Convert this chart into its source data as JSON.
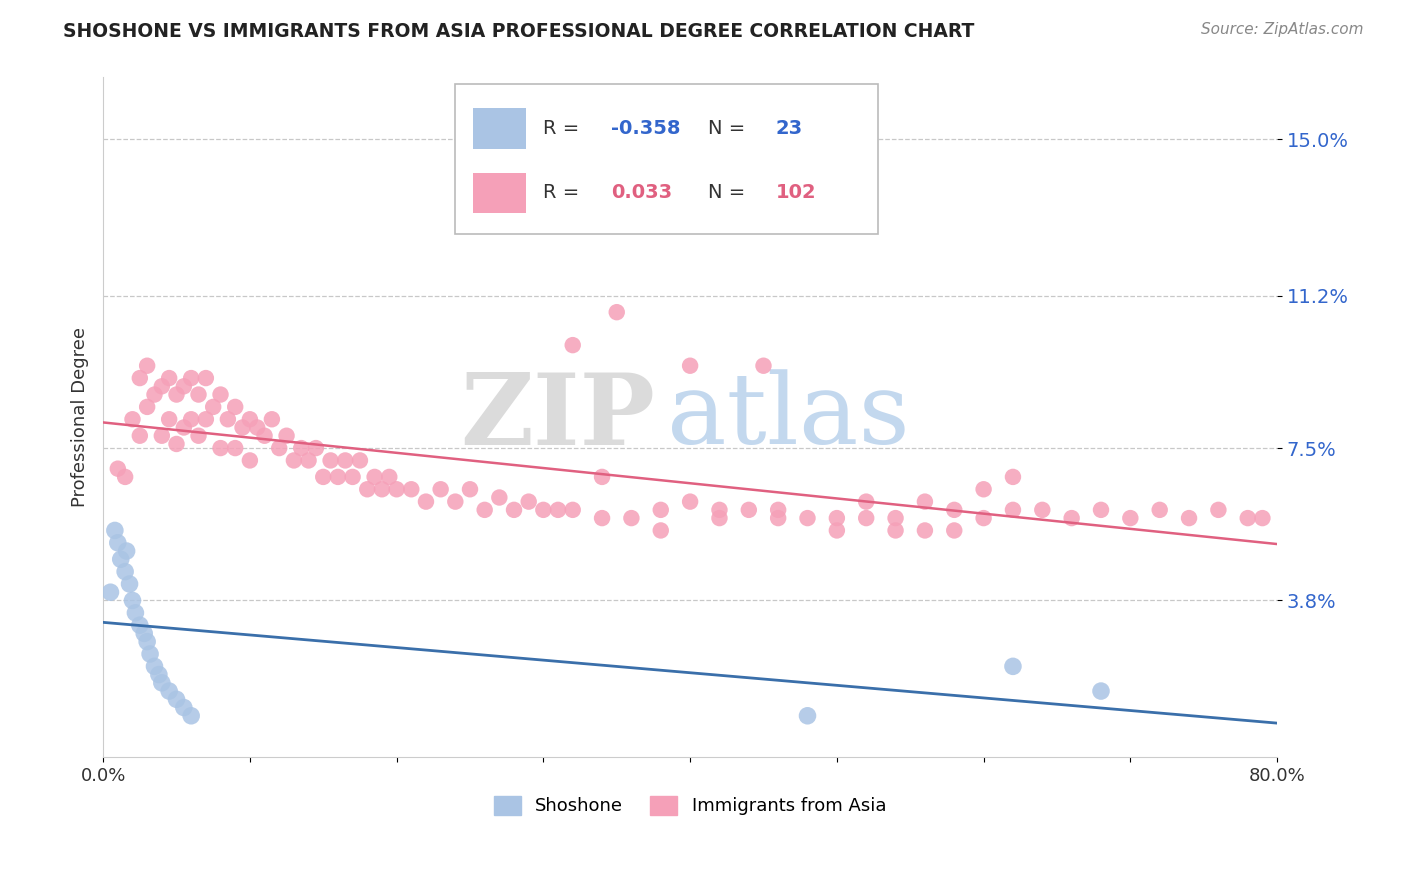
{
  "title": "SHOSHONE VS IMMIGRANTS FROM ASIA PROFESSIONAL DEGREE CORRELATION CHART",
  "source": "Source: ZipAtlas.com",
  "ylabel": "Professional Degree",
  "xlim": [
    0.0,
    0.8
  ],
  "ylim": [
    0.0,
    0.165
  ],
  "yticks": [
    0.038,
    0.075,
    0.112,
    0.15
  ],
  "ytick_labels": [
    "3.8%",
    "7.5%",
    "11.2%",
    "15.0%"
  ],
  "xticks": [
    0.0,
    0.1,
    0.2,
    0.3,
    0.4,
    0.5,
    0.6,
    0.7,
    0.8
  ],
  "xtick_labels": [
    "0.0%",
    "",
    "",
    "",
    "",
    "",
    "",
    "",
    "80.0%"
  ],
  "watermark_zip": "ZIP",
  "watermark_atlas": "atlas",
  "shoshone_color": "#aac4e4",
  "asia_color": "#f5a0b8",
  "shoshone_line_color": "#3a6faa",
  "asia_line_color": "#e06080",
  "background_color": "#ffffff",
  "legend_box_color": "#ffffff",
  "legend_border_color": "#cccccc",
  "r1_val": "-0.358",
  "n1_val": "23",
  "r2_val": "0.033",
  "n2_val": "102",
  "r_color_blue": "#3366cc",
  "r_color_pink": "#e06080",
  "shoshone_x": [
    0.005,
    0.008,
    0.01,
    0.012,
    0.015,
    0.016,
    0.018,
    0.02,
    0.022,
    0.025,
    0.028,
    0.03,
    0.032,
    0.035,
    0.038,
    0.04,
    0.045,
    0.05,
    0.055,
    0.06,
    0.48,
    0.62,
    0.68
  ],
  "shoshone_y": [
    0.04,
    0.055,
    0.052,
    0.048,
    0.045,
    0.05,
    0.042,
    0.038,
    0.035,
    0.032,
    0.03,
    0.028,
    0.025,
    0.022,
    0.02,
    0.018,
    0.016,
    0.014,
    0.012,
    0.01,
    0.01,
    0.022,
    0.016
  ],
  "asia_x": [
    0.01,
    0.015,
    0.02,
    0.025,
    0.025,
    0.03,
    0.03,
    0.035,
    0.04,
    0.04,
    0.045,
    0.045,
    0.05,
    0.05,
    0.055,
    0.055,
    0.06,
    0.06,
    0.065,
    0.065,
    0.07,
    0.07,
    0.075,
    0.08,
    0.08,
    0.085,
    0.09,
    0.09,
    0.095,
    0.1,
    0.1,
    0.105,
    0.11,
    0.115,
    0.12,
    0.125,
    0.13,
    0.135,
    0.14,
    0.145,
    0.15,
    0.155,
    0.16,
    0.165,
    0.17,
    0.175,
    0.18,
    0.185,
    0.19,
    0.195,
    0.2,
    0.21,
    0.22,
    0.23,
    0.24,
    0.25,
    0.26,
    0.27,
    0.28,
    0.29,
    0.3,
    0.31,
    0.32,
    0.34,
    0.36,
    0.38,
    0.4,
    0.42,
    0.44,
    0.46,
    0.48,
    0.5,
    0.52,
    0.54,
    0.56,
    0.58,
    0.6,
    0.62,
    0.64,
    0.66,
    0.68,
    0.7,
    0.72,
    0.74,
    0.76,
    0.78,
    0.79,
    0.34,
    0.32,
    0.35,
    0.4,
    0.45,
    0.38,
    0.42,
    0.46,
    0.5,
    0.52,
    0.54,
    0.56,
    0.58,
    0.6,
    0.62
  ],
  "asia_y": [
    0.07,
    0.068,
    0.082,
    0.078,
    0.092,
    0.085,
    0.095,
    0.088,
    0.09,
    0.078,
    0.092,
    0.082,
    0.088,
    0.076,
    0.09,
    0.08,
    0.092,
    0.082,
    0.088,
    0.078,
    0.092,
    0.082,
    0.085,
    0.088,
    0.075,
    0.082,
    0.085,
    0.075,
    0.08,
    0.082,
    0.072,
    0.08,
    0.078,
    0.082,
    0.075,
    0.078,
    0.072,
    0.075,
    0.072,
    0.075,
    0.068,
    0.072,
    0.068,
    0.072,
    0.068,
    0.072,
    0.065,
    0.068,
    0.065,
    0.068,
    0.065,
    0.065,
    0.062,
    0.065,
    0.062,
    0.065,
    0.06,
    0.063,
    0.06,
    0.062,
    0.06,
    0.06,
    0.06,
    0.058,
    0.058,
    0.06,
    0.062,
    0.06,
    0.06,
    0.06,
    0.058,
    0.058,
    0.058,
    0.058,
    0.055,
    0.06,
    0.058,
    0.06,
    0.06,
    0.058,
    0.06,
    0.058,
    0.06,
    0.058,
    0.06,
    0.058,
    0.058,
    0.068,
    0.1,
    0.108,
    0.095,
    0.095,
    0.055,
    0.058,
    0.058,
    0.055,
    0.062,
    0.055,
    0.062,
    0.055,
    0.065,
    0.068
  ]
}
